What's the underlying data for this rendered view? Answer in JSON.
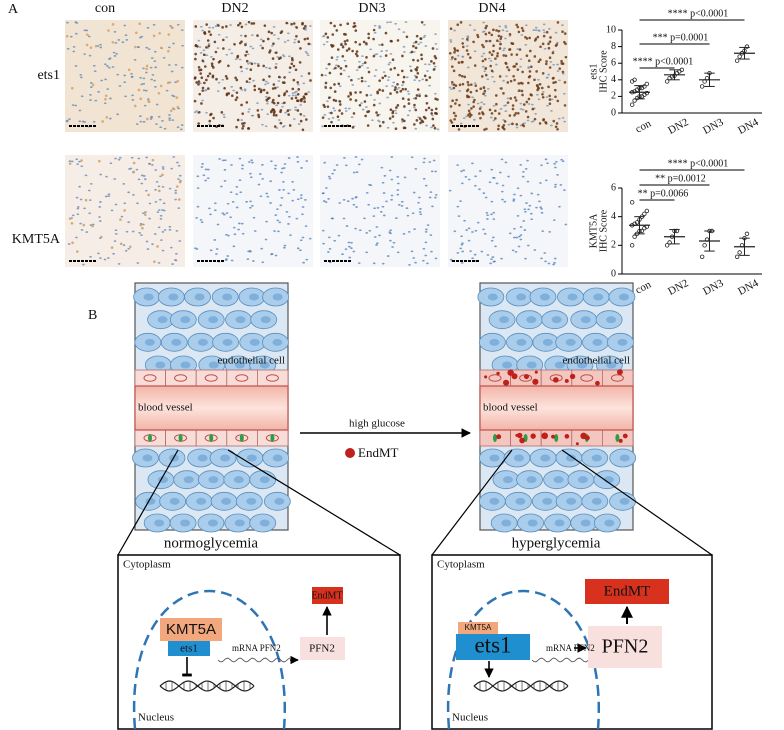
{
  "panel_a": {
    "label": "A",
    "columns": [
      "con",
      "DN2",
      "DN3",
      "DN4"
    ],
    "rows": [
      "ets1",
      "KMT5A"
    ]
  },
  "chart_data": [
    {
      "type": "dot",
      "ylabel": [
        "ets1",
        "IHC Score"
      ],
      "categories": [
        "con",
        "DN2",
        "DN3",
        "DN4"
      ],
      "mean": [
        2.5,
        4.6,
        4,
        7.2
      ],
      "sd": [
        0.8,
        0.6,
        0.8,
        0.7
      ],
      "points": [
        [
          1,
          1.5,
          1.8,
          2,
          2,
          2.2,
          2.4,
          2.5,
          2.6,
          2.8,
          3,
          3,
          3.2,
          3.5,
          3.8,
          4
        ],
        [
          3.8,
          4.2,
          4.4,
          4.5,
          4.8,
          5,
          5.2
        ],
        [
          3.2,
          3.8,
          4.2,
          4.8
        ],
        [
          6.3,
          6.8,
          7.2,
          7.5,
          8
        ]
      ],
      "color": "#222222",
      "ylim": [
        0,
        10
      ],
      "yticks": [
        0,
        2,
        4,
        6,
        8,
        10
      ],
      "comparisons": [
        "**** p<0.0001",
        "*** p=0.0001",
        "**** p<0.0001"
      ]
    },
    {
      "type": "dot",
      "ylabel": [
        "KMT5A",
        "IHC Score"
      ],
      "categories": [
        "con",
        "DN2",
        "DN3",
        "DN4"
      ],
      "mean": [
        3.4,
        2.6,
        2.3,
        1.9
      ],
      "sd": [
        0.6,
        0.5,
        0.7,
        0.6
      ],
      "points": [
        [
          2,
          2.6,
          2.8,
          3,
          3,
          3.2,
          3.3,
          3.4,
          3.5,
          3.6,
          3.8,
          4,
          4.2,
          4.4,
          5
        ],
        [
          2,
          2.2,
          2.6,
          3,
          3
        ],
        [
          1.2,
          2,
          2.4,
          3,
          3
        ],
        [
          1.2,
          1.5,
          2,
          2.5,
          2.8
        ]
      ],
      "color": "#222222",
      "ylim": [
        0,
        6
      ],
      "yticks": [
        0,
        2,
        4,
        6
      ],
      "comparisons": [
        "** p=0.0066",
        "** p=0.0012",
        "**** p<0.0001"
      ]
    }
  ],
  "panel_b": {
    "label": "B",
    "arrow": {
      "label": "high glucose",
      "legend": "EndMT"
    },
    "left": {
      "cell_label": "endothelial cell",
      "vessel_label": "blood vessel",
      "condition": "normoglycemia",
      "detail": {
        "cytoplasm": "Cytoplasm",
        "nucleus": "Nucleus",
        "kmt5a": "KMT5A",
        "ets1": "ets1",
        "mrna": "mRNA PFN2",
        "pfn2": "PFN2",
        "endmt": "EndMT"
      }
    },
    "right": {
      "cell_label": "endothelial cell",
      "vessel_label": "blood vessel",
      "condition": "hyperglycemia",
      "detail": {
        "cytoplasm": "Cytoplasm",
        "nucleus": "Nucleus",
        "kmt5a": "KMT5A",
        "ets1": "ets1",
        "mrna": "mRNA PFN2",
        "pfn2": "PFN2",
        "endmt": "EndMT"
      }
    }
  }
}
